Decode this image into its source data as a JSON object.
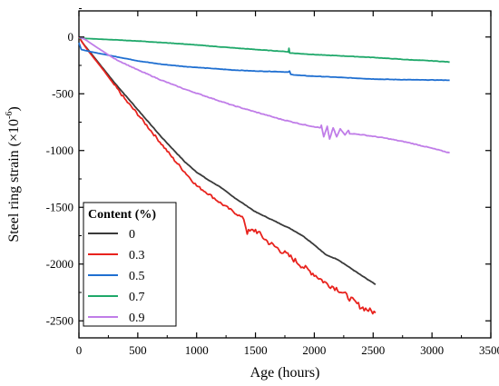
{
  "chart_data": {
    "type": "line",
    "xlabel": "Age (hours)",
    "ylabel_main": "Steel ring strain (×10",
    "ylabel_sup": "-6",
    "ylabel_close": ")",
    "xlim": [
      0,
      3500
    ],
    "ylim": [
      -2650,
      230
    ],
    "xticks": [
      0,
      500,
      1000,
      1500,
      2000,
      2500,
      3000,
      3500
    ],
    "yticks": [
      0,
      -500,
      -1000,
      -1500,
      -2000,
      -2500
    ],
    "grid": false,
    "legend_position": "bottom-left",
    "legend_title": "Content (%)",
    "series": [
      {
        "name": "0",
        "color": "#3a3a3a",
        "points": [
          [
            0,
            0
          ],
          [
            30,
            -50
          ],
          [
            100,
            -140
          ],
          [
            200,
            -270
          ],
          [
            300,
            -400
          ],
          [
            400,
            -520
          ],
          [
            500,
            -640
          ],
          [
            600,
            -760
          ],
          [
            700,
            -880
          ],
          [
            800,
            -990
          ],
          [
            900,
            -1100
          ],
          [
            1000,
            -1190
          ],
          [
            1100,
            -1260
          ],
          [
            1200,
            -1320
          ],
          [
            1300,
            -1400
          ],
          [
            1400,
            -1470
          ],
          [
            1500,
            -1540
          ],
          [
            1600,
            -1590
          ],
          [
            1700,
            -1640
          ],
          [
            1800,
            -1690
          ],
          [
            1900,
            -1750
          ],
          [
            2000,
            -1830
          ],
          [
            2100,
            -1920
          ],
          [
            2200,
            -1960
          ],
          [
            2300,
            -2030
          ],
          [
            2400,
            -2100
          ],
          [
            2520,
            -2180
          ]
        ]
      },
      {
        "name": "0.3",
        "color": "#e8231e",
        "points": [
          [
            0,
            0
          ],
          [
            50,
            -80
          ],
          [
            100,
            -150
          ],
          [
            200,
            -280
          ],
          [
            300,
            -420
          ],
          [
            400,
            -560
          ],
          [
            500,
            -680
          ],
          [
            600,
            -810
          ],
          [
            700,
            -940
          ],
          [
            800,
            -1070
          ],
          [
            900,
            -1190
          ],
          [
            1000,
            -1310
          ],
          [
            1100,
            -1380
          ],
          [
            1200,
            -1460
          ],
          [
            1300,
            -1530
          ],
          [
            1400,
            -1600
          ],
          [
            1430,
            -1720
          ],
          [
            1500,
            -1700
          ],
          [
            1600,
            -1800
          ],
          [
            1700,
            -1870
          ],
          [
            1800,
            -1940
          ],
          [
            1900,
            -2020
          ],
          [
            2000,
            -2090
          ],
          [
            2100,
            -2170
          ],
          [
            2200,
            -2220
          ],
          [
            2300,
            -2300
          ],
          [
            2400,
            -2380
          ],
          [
            2520,
            -2430
          ]
        ]
      },
      {
        "name": "0.5",
        "color": "#1f6fd1",
        "points": [
          [
            0,
            -50
          ],
          [
            20,
            -110
          ],
          [
            100,
            -130
          ],
          [
            200,
            -150
          ],
          [
            300,
            -170
          ],
          [
            400,
            -190
          ],
          [
            500,
            -210
          ],
          [
            700,
            -240
          ],
          [
            900,
            -260
          ],
          [
            1100,
            -275
          ],
          [
            1300,
            -290
          ],
          [
            1500,
            -300
          ],
          [
            1700,
            -305
          ],
          [
            1780,
            -310
          ],
          [
            1790,
            -300
          ],
          [
            1800,
            -330
          ],
          [
            1900,
            -340
          ],
          [
            2100,
            -350
          ],
          [
            2300,
            -360
          ],
          [
            2500,
            -370
          ],
          [
            2700,
            -375
          ],
          [
            2900,
            -378
          ],
          [
            3150,
            -380
          ]
        ]
      },
      {
        "name": "0.7",
        "color": "#1fa86a",
        "points": [
          [
            0,
            -10
          ],
          [
            100,
            -15
          ],
          [
            300,
            -25
          ],
          [
            500,
            -35
          ],
          [
            800,
            -55
          ],
          [
            1000,
            -70
          ],
          [
            1300,
            -95
          ],
          [
            1500,
            -110
          ],
          [
            1780,
            -130
          ],
          [
            1785,
            -100
          ],
          [
            1790,
            -140
          ],
          [
            2000,
            -155
          ],
          [
            2200,
            -165
          ],
          [
            2500,
            -180
          ],
          [
            2800,
            -200
          ],
          [
            3000,
            -210
          ],
          [
            3150,
            -220
          ]
        ]
      },
      {
        "name": "0.9",
        "color": "#c07de8",
        "points": [
          [
            0,
            0
          ],
          [
            50,
            -20
          ],
          [
            150,
            -90
          ],
          [
            300,
            -190
          ],
          [
            500,
            -290
          ],
          [
            700,
            -380
          ],
          [
            900,
            -460
          ],
          [
            1100,
            -530
          ],
          [
            1300,
            -600
          ],
          [
            1500,
            -660
          ],
          [
            1700,
            -720
          ],
          [
            1900,
            -770
          ],
          [
            2050,
            -800
          ],
          [
            2060,
            -780
          ],
          [
            2080,
            -880
          ],
          [
            2110,
            -790
          ],
          [
            2130,
            -900
          ],
          [
            2160,
            -800
          ],
          [
            2190,
            -880
          ],
          [
            2220,
            -810
          ],
          [
            2260,
            -860
          ],
          [
            2290,
            -820
          ],
          [
            2300,
            -850
          ],
          [
            2400,
            -860
          ],
          [
            2600,
            -890
          ],
          [
            2800,
            -930
          ],
          [
            3000,
            -980
          ],
          [
            3150,
            -1020
          ]
        ]
      }
    ]
  }
}
